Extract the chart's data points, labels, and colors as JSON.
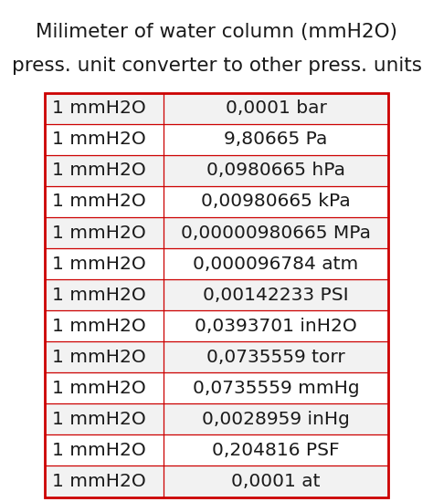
{
  "title_line1": "Milimeter of water column (mmH2O)",
  "title_line2": "press. unit converter to other press. units",
  "rows": [
    [
      "1 mmH2O",
      "0,0001 bar"
    ],
    [
      "1 mmH2O",
      "9,80665 Pa"
    ],
    [
      "1 mmH2O",
      "0,0980665 hPa"
    ],
    [
      "1 mmH2O",
      "0,00980665 kPa"
    ],
    [
      "1 mmH2O",
      "0,00000980665 MPa"
    ],
    [
      "1 mmH2O",
      "0,000096784 atm"
    ],
    [
      "1 mmH2O",
      "0,00142233 PSI"
    ],
    [
      "1 mmH2O",
      "0,0393701 inH2O"
    ],
    [
      "1 mmH2O",
      "0,0735559 torr"
    ],
    [
      "1 mmH2O",
      "0,0735559 mmHg"
    ],
    [
      "1 mmH2O",
      "0,0028959 inHg"
    ],
    [
      "1 mmH2O",
      "0,204816 PSF"
    ],
    [
      "1 mmH2O",
      "0,0001 at"
    ]
  ],
  "table_border_color": "#cc0000",
  "row_divider_color": "#cc0000",
  "col_divider_color": "#cc0000",
  "bg_color": "#ffffff",
  "text_color": "#1a1a1a",
  "title_color": "#1a1a1a",
  "row_bg_even": "#ffffff",
  "row_bg_odd": "#f2f2f2",
  "title_fontsize": 15.5,
  "cell_fontsize": 14.5,
  "fig_width": 4.74,
  "fig_height": 5.5
}
